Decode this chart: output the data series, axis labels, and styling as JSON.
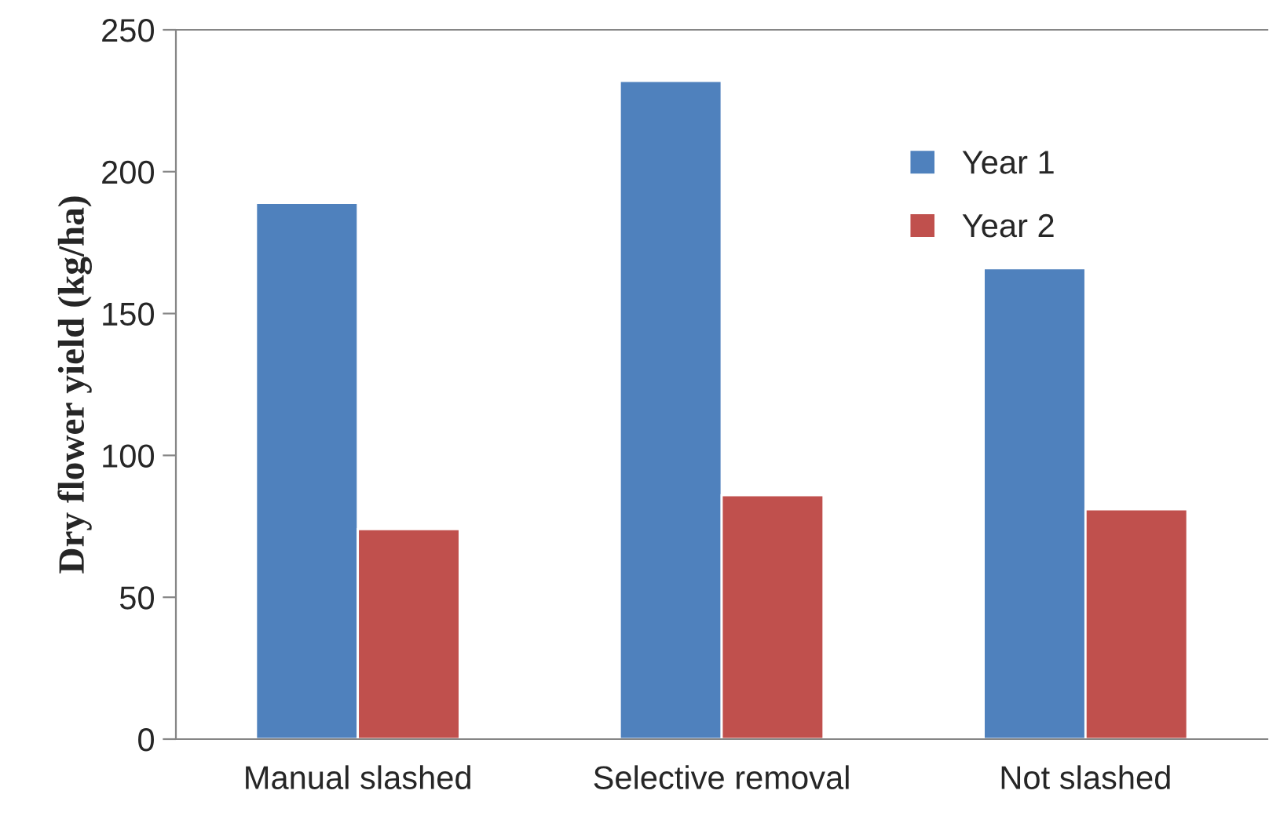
{
  "chart_data": {
    "type": "bar",
    "ylabel": "Dry flower yield (kg/ha)",
    "categories": [
      "Manual slashed",
      "Selective removal",
      "Not slashed"
    ],
    "series": [
      {
        "name": "Year 1",
        "color": "#4f81bd",
        "values": [
          189,
          232,
          166
        ]
      },
      {
        "name": "Year 2",
        "color": "#c0504d",
        "values": [
          74,
          86,
          81
        ]
      }
    ],
    "ylim": [
      0,
      250
    ],
    "yticks": [
      0,
      50,
      100,
      150,
      200,
      250
    ],
    "grid": false,
    "legend": "top right"
  }
}
